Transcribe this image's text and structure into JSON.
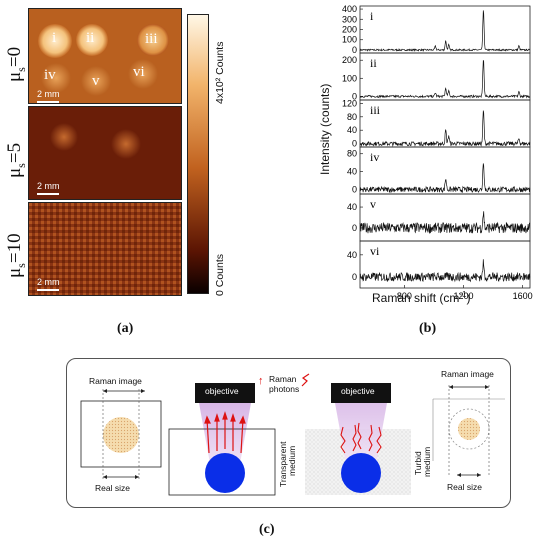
{
  "panel_a": {
    "label": "(a)",
    "rows": [
      {
        "mu": "μ",
        "sub": "s",
        "val": "=0",
        "scalebar": "2 mm"
      },
      {
        "mu": "μ",
        "sub": "s",
        "val": "=5",
        "scalebar": "2 mm"
      },
      {
        "mu": "μ",
        "sub": "s",
        "val": "=10",
        "scalebar": "2 mm"
      }
    ],
    "spots": [
      "i",
      "ii",
      "iii",
      "iv",
      "v",
      "vi"
    ],
    "colorbar": {
      "top": "4x10² Counts",
      "bottom": "0 Counts"
    },
    "colors": {
      "dark": "#1a0500",
      "mid": "#a8401a",
      "bright": "#ffeed0"
    }
  },
  "panel_b": {
    "label": "(b)",
    "ylabel": "Intensity (counts)",
    "xlabel": "Raman shift (cm-1)",
    "xticks": [
      "800",
      "1200",
      "1600"
    ]
  },
  "panel_c": {
    "label": "(c)",
    "raman_image_left": "Raman image",
    "real_size_left": "Real size",
    "objective_1": "objective",
    "objective_2": "objective",
    "raman_photons_1": "Raman",
    "raman_photons_2": "photons",
    "transparent_medium_1": "Transparent",
    "transparent_medium_2": "medium",
    "turbid_medium_1": "Turbid",
    "turbid_medium_2": "medium",
    "raman_image_right": "Raman image",
    "real_size_right": "Real size"
  },
  "chart_data": {
    "type": "line",
    "xlabel": "Raman shift (cm-1)",
    "ylabel": "Intensity (counts)",
    "xlim": [
      500,
      1650
    ],
    "series": [
      {
        "name": "i",
        "yticks": [
          0,
          100,
          200,
          300,
          400
        ],
        "ylim": [
          -30,
          430
        ],
        "peaks": [
          [
            1010,
            35
          ],
          [
            1080,
            90
          ],
          [
            1100,
            50
          ],
          [
            1335,
            390
          ],
          [
            1575,
            40
          ]
        ],
        "noise": 8
      },
      {
        "name": "ii",
        "yticks": [
          0,
          100,
          200
        ],
        "ylim": [
          -20,
          240
        ],
        "peaks": [
          [
            1010,
            20
          ],
          [
            1080,
            45
          ],
          [
            1100,
            30
          ],
          [
            1335,
            210
          ],
          [
            1575,
            25
          ]
        ],
        "noise": 6
      },
      {
        "name": "iii",
        "yticks": [
          0,
          40,
          80,
          120
        ],
        "ylim": [
          -10,
          130
        ],
        "peaks": [
          [
            1080,
            40
          ],
          [
            1100,
            25
          ],
          [
            1335,
            100
          ],
          [
            1575,
            15
          ]
        ],
        "noise": 6
      },
      {
        "name": "iv",
        "yticks": [
          0,
          40,
          80
        ],
        "ylim": [
          -10,
          95
        ],
        "peaks": [
          [
            1080,
            25
          ],
          [
            1335,
            65
          ]
        ],
        "noise": 6
      },
      {
        "name": "v",
        "yticks": [
          0,
          40
        ],
        "ylim": [
          -25,
          65
        ],
        "peaks": [
          [
            1335,
            30
          ]
        ],
        "noise": 10
      },
      {
        "name": "vi",
        "yticks": [
          0,
          40
        ],
        "ylim": [
          -20,
          65
        ],
        "peaks": [
          [
            1335,
            25
          ]
        ],
        "noise": 8
      }
    ]
  }
}
